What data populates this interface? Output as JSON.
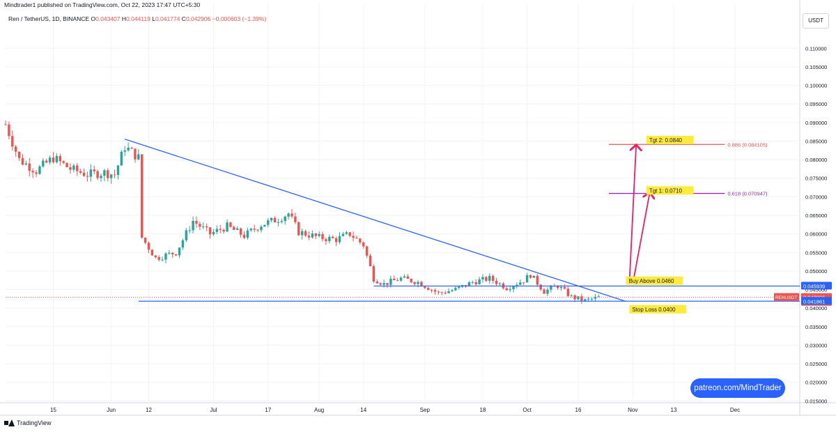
{
  "header": {
    "published_line": "Mindtrader1 published on TradingView.com, Oct 22, 2023 17:47 UTC+5:30"
  },
  "symbol": {
    "name": "Ren / TetherUS, 1D, BINANCE",
    "o_label": "O",
    "o_value": "0.043407",
    "h_label": "H",
    "h_value": "0.044119",
    "l_label": "L",
    "l_value": "0.041774",
    "c_label": "C",
    "c_value": "0.042906",
    "change": "−0.000603 (−1.39%)"
  },
  "currency_button": "USDT",
  "footer": {
    "brand": "TradingView"
  },
  "watermark": "patreon.com/MindTrader",
  "colors": {
    "up": "#26a69a",
    "down": "#ef5350",
    "trendline": "#2962ff",
    "arrow": "#e91e63",
    "target": "#e91e63",
    "label_bg": "#ffeb3b",
    "grid": "#f0f3fa"
  },
  "chart_data": {
    "type": "candlestick",
    "ylim": [
      0.0145,
      0.1155
    ],
    "ylabel": "USDT",
    "y_ticks": [
      "0.110000",
      "0.105000",
      "0.100000",
      "0.095000",
      "0.090000",
      "0.085000",
      "0.080000",
      "0.075000",
      "0.070000",
      "0.065000",
      "0.060000",
      "0.055000",
      "0.050000",
      "0.045000",
      "0.040000",
      "0.035000",
      "0.030000",
      "0.025000",
      "0.020000",
      "0.015000"
    ],
    "x_ticks": [
      {
        "label": "15",
        "date": "2023-05-15"
      },
      {
        "label": "Jun",
        "date": "2023-06-01"
      },
      {
        "label": "12",
        "date": "2023-06-12"
      },
      {
        "label": "Jul",
        "date": "2023-07-01"
      },
      {
        "label": "17",
        "date": "2023-07-17"
      },
      {
        "label": "Aug",
        "date": "2023-08-01"
      },
      {
        "label": "14",
        "date": "2023-08-14"
      },
      {
        "label": "Sep",
        "date": "2023-09-01"
      },
      {
        "label": "18",
        "date": "2023-09-18"
      },
      {
        "label": "Oct",
        "date": "2023-10-01"
      },
      {
        "label": "16",
        "date": "2023-10-16"
      },
      {
        "label": "Nov",
        "date": "2023-11-01"
      },
      {
        "label": "13",
        "date": "2023-11-13"
      },
      {
        "label": "Dec",
        "date": "2023-12-01"
      }
    ],
    "x_range": [
      "2023-05-01",
      "2023-12-20"
    ],
    "price_path": [
      {
        "date": "2023-05-01",
        "price": 0.0895
      },
      {
        "date": "2023-05-05",
        "price": 0.08
      },
      {
        "date": "2023-05-10",
        "price": 0.077
      },
      {
        "date": "2023-05-15",
        "price": 0.0805
      },
      {
        "date": "2023-05-20",
        "price": 0.0775
      },
      {
        "date": "2023-05-25",
        "price": 0.076
      },
      {
        "date": "2023-05-30",
        "price": 0.0765
      },
      {
        "date": "2023-06-02",
        "price": 0.076
      },
      {
        "date": "2023-06-05",
        "price": 0.0835
      },
      {
        "date": "2023-06-09",
        "price": 0.0805
      },
      {
        "date": "2023-06-10",
        "price": 0.059
      },
      {
        "date": "2023-06-14",
        "price": 0.0535
      },
      {
        "date": "2023-06-20",
        "price": 0.055
      },
      {
        "date": "2023-06-25",
        "price": 0.0635
      },
      {
        "date": "2023-06-30",
        "price": 0.06
      },
      {
        "date": "2023-07-05",
        "price": 0.062
      },
      {
        "date": "2023-07-10",
        "price": 0.0595
      },
      {
        "date": "2023-07-15",
        "price": 0.0625
      },
      {
        "date": "2023-07-20",
        "price": 0.064
      },
      {
        "date": "2023-07-23",
        "price": 0.0655
      },
      {
        "date": "2023-07-26",
        "price": 0.0605
      },
      {
        "date": "2023-08-01",
        "price": 0.059
      },
      {
        "date": "2023-08-06",
        "price": 0.0585
      },
      {
        "date": "2023-08-10",
        "price": 0.06
      },
      {
        "date": "2023-08-14",
        "price": 0.057
      },
      {
        "date": "2023-08-17",
        "price": 0.048
      },
      {
        "date": "2023-08-20",
        "price": 0.0465
      },
      {
        "date": "2023-08-25",
        "price": 0.048
      },
      {
        "date": "2023-08-30",
        "price": 0.047
      },
      {
        "date": "2023-09-05",
        "price": 0.044
      },
      {
        "date": "2023-09-10",
        "price": 0.045
      },
      {
        "date": "2023-09-15",
        "price": 0.047
      },
      {
        "date": "2023-09-20",
        "price": 0.048
      },
      {
        "date": "2023-09-25",
        "price": 0.0455
      },
      {
        "date": "2023-09-30",
        "price": 0.0475
      },
      {
        "date": "2023-10-02",
        "price": 0.049
      },
      {
        "date": "2023-10-06",
        "price": 0.0445
      },
      {
        "date": "2023-10-10",
        "price": 0.046
      },
      {
        "date": "2023-10-14",
        "price": 0.043
      },
      {
        "date": "2023-10-18",
        "price": 0.042
      },
      {
        "date": "2023-10-22",
        "price": 0.0429
      }
    ],
    "trendline": {
      "start": {
        "date": "2023-06-05",
        "price": 0.0855
      },
      "end": {
        "date": "2023-10-30",
        "price": 0.0418
      }
    },
    "support": {
      "price": 0.04186,
      "start": "2023-06-09",
      "end": "2023-12-20"
    },
    "resistance": {
      "price": 0.045939,
      "start": "2023-08-17",
      "end": "2023-12-20"
    },
    "fib_levels": [
      {
        "label": "0.886 (0.084105)",
        "price": 0.0841,
        "start": "2023-10-25",
        "end": "2023-11-28",
        "color": "#ef5350"
      },
      {
        "label": "0.618 (0.070947)",
        "price": 0.0709,
        "start": "2023-10-25",
        "end": "2023-11-28",
        "color": "#9c27b0"
      }
    ],
    "target_labels": [
      {
        "text": "Tgt 2: 0.0840",
        "price": 0.0851,
        "date": "2023-11-05"
      },
      {
        "text": "Tgt 1: 0.0710",
        "price": 0.0715,
        "date": "2023-11-05"
      }
    ],
    "trade_labels": [
      {
        "text": "Buy Above 0.0460",
        "price": 0.0472,
        "date": "2023-10-30"
      },
      {
        "text": "Stop Loss 0.0400",
        "price": 0.0395,
        "date": "2023-10-31"
      }
    ],
    "arrows": [
      {
        "from": {
          "date": "2023-10-31",
          "price": 0.0465
        },
        "to": {
          "date": "2023-11-02",
          "price": 0.084
        }
      },
      {
        "from": {
          "date": "2023-11-01",
          "price": 0.0465
        },
        "to": {
          "date": "2023-11-06",
          "price": 0.0712
        }
      }
    ],
    "price_badges": [
      {
        "text": "0.045939",
        "price": 0.045939,
        "color": "#2962ff"
      },
      {
        "text": "0.042906",
        "sub": "11:42:14",
        "price": 0.042906,
        "color": "#ef5350"
      },
      {
        "text": "0.041861",
        "price": 0.041861,
        "color": "#2962ff"
      }
    ],
    "ticker_badge": {
      "text": "RENUSDT",
      "price": 0.042906,
      "color": "#ef5350"
    },
    "last_price": 0.042906
  }
}
